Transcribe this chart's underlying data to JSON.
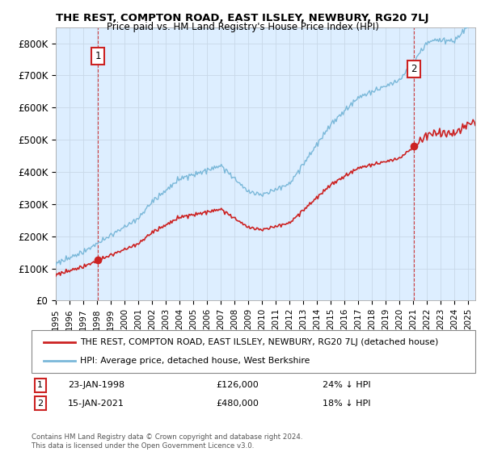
{
  "title": "THE REST, COMPTON ROAD, EAST ILSLEY, NEWBURY, RG20 7LJ",
  "subtitle": "Price paid vs. HM Land Registry's House Price Index (HPI)",
  "ylim": [
    0,
    850000
  ],
  "yticks": [
    0,
    100000,
    200000,
    300000,
    400000,
    500000,
    600000,
    700000,
    800000
  ],
  "ytick_labels": [
    "£0",
    "£100K",
    "£200K",
    "£300K",
    "£400K",
    "£500K",
    "£600K",
    "£700K",
    "£800K"
  ],
  "xlim_start": 1995.0,
  "xlim_end": 2025.5,
  "hpi_color": "#7ab8d9",
  "price_color": "#cc2222",
  "marker_color": "#cc2222",
  "grid_color": "#c8d8e8",
  "plot_bg_color": "#ddeeff",
  "bg_color": "#ffffff",
  "sale1_x": 1998.07,
  "sale1_y": 126000,
  "sale1_label": "1",
  "sale2_x": 2021.04,
  "sale2_y": 480000,
  "sale2_label": "2",
  "legend_line1": "THE REST, COMPTON ROAD, EAST ILSLEY, NEWBURY, RG20 7LJ (detached house)",
  "legend_line2": "HPI: Average price, detached house, West Berkshire",
  "note1_label": "1",
  "note1_date": "23-JAN-1998",
  "note1_price": "£126,000",
  "note1_hpi": "24% ↓ HPI",
  "note2_label": "2",
  "note2_date": "15-JAN-2021",
  "note2_price": "£480,000",
  "note2_hpi": "18% ↓ HPI",
  "copyright": "Contains HM Land Registry data © Crown copyright and database right 2024.\nThis data is licensed under the Open Government Licence v3.0."
}
